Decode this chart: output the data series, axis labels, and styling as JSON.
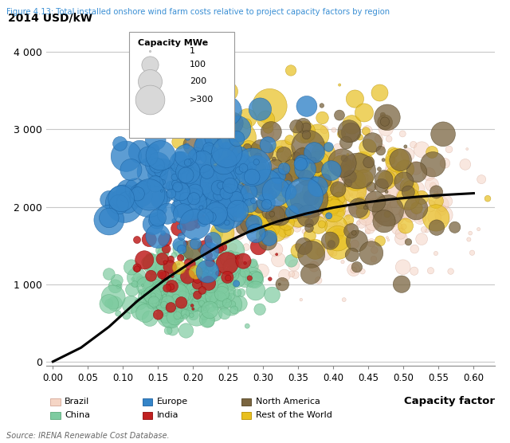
{
  "title": "Figure 4.13: Total installed onshore wind farm costs relative to project capacity factors by region",
  "ylabel": "2014 USD/kW",
  "xlabel": "Capacity factor",
  "source": "Source: IRENA Renewable Cost Database.",
  "xlim": [
    -0.01,
    0.63
  ],
  "ylim": [
    -50,
    4300
  ],
  "xticks": [
    0.0,
    0.05,
    0.1,
    0.15,
    0.2,
    0.25,
    0.3,
    0.35,
    0.4,
    0.45,
    0.5,
    0.55,
    0.6
  ],
  "yticks": [
    0,
    1000,
    2000,
    3000,
    4000
  ],
  "ytick_labels": [
    "0",
    "1 000",
    "2 000",
    "3 000",
    "4 000"
  ],
  "regions": {
    "Brazil": {
      "color": "#f5d5c5",
      "edge": "#d4a898"
    },
    "China": {
      "color": "#7ecba0",
      "edge": "#5aaa7a"
    },
    "Europe": {
      "color": "#3585c8",
      "edge": "#1a60a0"
    },
    "India": {
      "color": "#c02020",
      "edge": "#900808"
    },
    "North America": {
      "color": "#7a6540",
      "edge": "#504020"
    },
    "Rest of the World": {
      "color": "#e8c020",
      "edge": "#b89000"
    }
  },
  "curve_x": [
    0.0,
    0.04,
    0.08,
    0.12,
    0.16,
    0.2,
    0.24,
    0.28,
    0.32,
    0.36,
    0.4,
    0.44,
    0.48,
    0.52,
    0.56,
    0.6
  ],
  "curve_y": [
    0,
    180,
    450,
    780,
    1060,
    1300,
    1510,
    1680,
    1810,
    1910,
    1990,
    2050,
    2095,
    2130,
    2155,
    2175
  ]
}
